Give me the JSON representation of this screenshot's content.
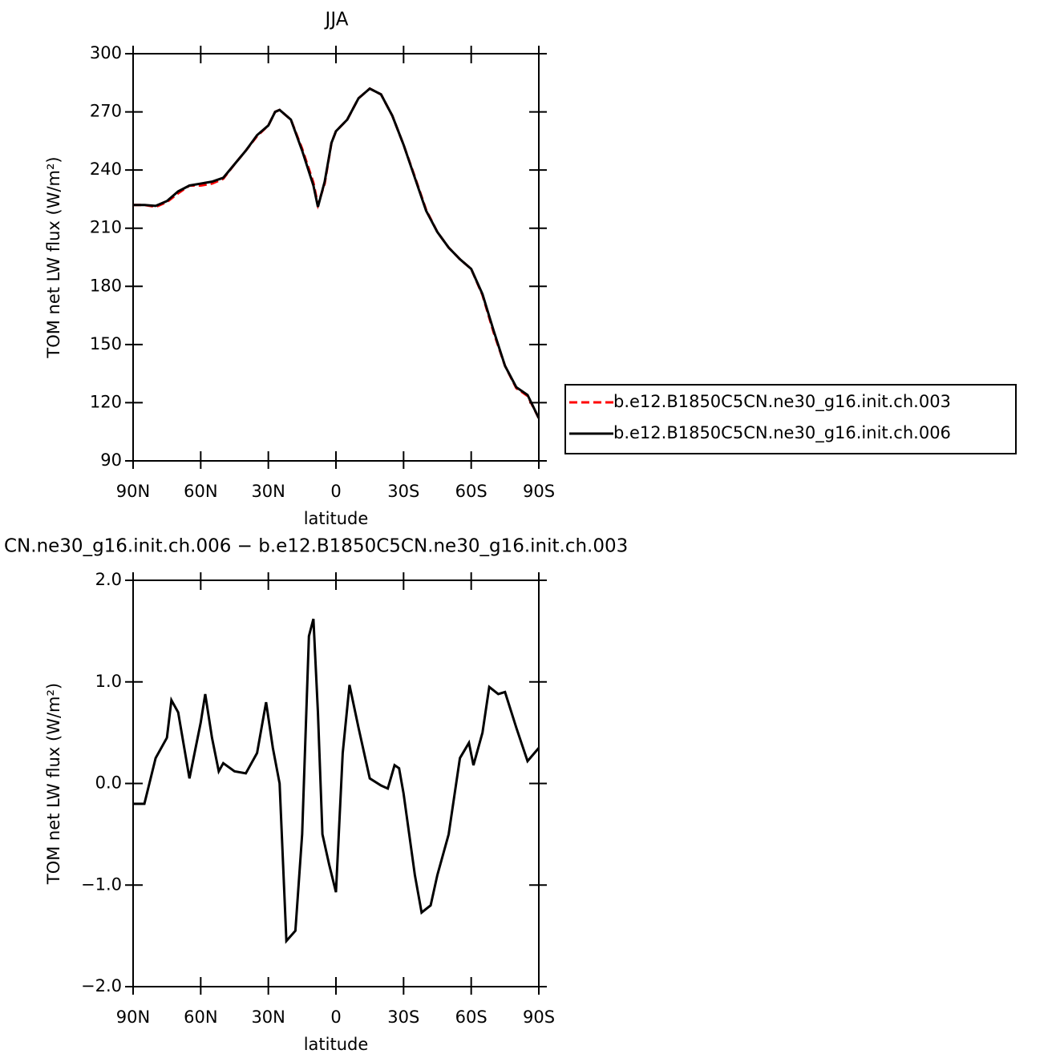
{
  "chart_data": [
    {
      "type": "line",
      "title": "JJA",
      "xlabel": "latitude",
      "ylabel": "TOM net LW flux (W/m²)",
      "xlim": [
        90,
        -90
      ],
      "xticks": [
        {
          "value": 90,
          "label": "90N"
        },
        {
          "value": 60,
          "label": "60N"
        },
        {
          "value": 30,
          "label": "30N"
        },
        0,
        {
          "value": -30,
          "label": "30S"
        },
        {
          "value": -60,
          "label": "60S"
        },
        {
          "value": -90,
          "label": "90S"
        }
      ],
      "ylim": [
        90,
        300
      ],
      "yticks": [
        90,
        120,
        150,
        180,
        210,
        240,
        270,
        300
      ],
      "legend": "right",
      "x": [
        90,
        85,
        80,
        75,
        70,
        65,
        60,
        55,
        50,
        45,
        40,
        35,
        30,
        27,
        25,
        20,
        15,
        10,
        8,
        5,
        2,
        0,
        -5,
        -10,
        -15,
        -20,
        -25,
        -30,
        -35,
        -40,
        -45,
        -50,
        -55,
        -60,
        -65,
        -70,
        -75,
        -80,
        -85,
        -90
      ],
      "series": [
        {
          "name": "b.e12.B1850C5CN.ne30_g16.init.ch.003",
          "color": "#ff0000",
          "style": "dashed",
          "values": [
            222,
            222,
            221,
            223.5,
            228,
            232,
            232,
            233,
            235.5,
            243,
            250,
            257.5,
            263,
            270,
            271,
            266,
            251,
            233.5,
            222,
            233,
            254,
            260,
            266,
            277,
            282,
            279,
            268,
            253,
            236.5,
            219.5,
            208,
            200,
            194,
            189,
            175.5,
            156,
            139,
            127.5,
            123.5,
            112
          ]
        },
        {
          "name": "b.e12.B1850C5CN.ne30_g16.init.ch.006",
          "color": "#000000",
          "style": "solid",
          "values": [
            222,
            222,
            221.5,
            224,
            229,
            232,
            233,
            234,
            236,
            243,
            250,
            258,
            263,
            270,
            271,
            266,
            250,
            232,
            221,
            234,
            254,
            260,
            266,
            277,
            282,
            279,
            268,
            253,
            236,
            219,
            208,
            200,
            194,
            189,
            176,
            157,
            139,
            128,
            124,
            112
          ]
        }
      ]
    },
    {
      "type": "line",
      "title": "CN.ne30_g16.init.ch.006 − b.e12.B1850C5CN.ne30_g16.init.ch.003",
      "xlabel": "latitude",
      "ylabel": "TOM net LW flux (W/m²)",
      "xlim": [
        90,
        -90
      ],
      "xticks": [
        {
          "value": 90,
          "label": "90N"
        },
        {
          "value": 60,
          "label": "60N"
        },
        {
          "value": 30,
          "label": "30N"
        },
        0,
        {
          "value": -30,
          "label": "30S"
        },
        {
          "value": -60,
          "label": "60S"
        },
        {
          "value": -90,
          "label": "90S"
        }
      ],
      "ylim": [
        -2,
        2
      ],
      "yticks": [
        {
          "value": -2,
          "label": "−2.0"
        },
        {
          "value": -1,
          "label": "−1.0"
        },
        {
          "value": 0,
          "label": "0.0"
        },
        {
          "value": 1,
          "label": "1.0"
        },
        {
          "value": 2,
          "label": "2.0"
        }
      ],
      "x": [
        90,
        85,
        80,
        75,
        73,
        70,
        65,
        60,
        58,
        55,
        52,
        50,
        45,
        40,
        35,
        31,
        28,
        25,
        22,
        18,
        15,
        12,
        10,
        8,
        6,
        3,
        0,
        -3,
        -6,
        -10,
        -15,
        -20,
        -23,
        -26,
        -28,
        -30,
        -35,
        -38,
        -42,
        -45,
        -50,
        -55,
        -59,
        -61,
        -65,
        -68,
        -72,
        -75,
        -80,
        -85,
        -90
      ],
      "series": [
        {
          "color": "#000000",
          "style": "solid",
          "values": [
            -0.2,
            -0.2,
            0.25,
            0.45,
            0.82,
            0.7,
            0.05,
            0.6,
            0.88,
            0.45,
            0.12,
            0.2,
            0.12,
            0.1,
            0.3,
            0.8,
            0.35,
            0.0,
            -1.55,
            -1.45,
            -0.5,
            1.45,
            1.62,
            0.7,
            -0.5,
            -0.8,
            -1.07,
            0.3,
            0.97,
            0.55,
            0.05,
            -0.02,
            -0.05,
            0.18,
            0.15,
            -0.1,
            -0.9,
            -1.27,
            -1.2,
            -0.9,
            -0.5,
            0.25,
            0.4,
            0.18,
            0.5,
            0.95,
            0.88,
            0.9,
            0.55,
            0.22,
            0.35
          ]
        }
      ]
    }
  ]
}
